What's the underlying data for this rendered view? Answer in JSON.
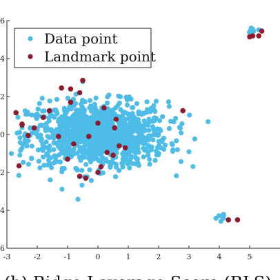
{
  "chart_data": {
    "type": "scatter",
    "xlim": [
      -3,
      6
    ],
    "ylim": [
      -6,
      6
    ],
    "x_ticks": [
      "-3",
      "-2",
      "-1",
      "0",
      "1",
      "2",
      "3",
      "4",
      "5"
    ],
    "y_ticks": [
      "6",
      "4",
      "2",
      "0",
      "2",
      "4",
      "6"
    ],
    "legend_position": "top-left",
    "colors": {
      "data": "#4dbde8",
      "landmark": "#8c1b2e"
    },
    "series": [
      {
        "name": "Data point",
        "clusters": [
          {
            "cx": 0.0,
            "cy": 0.0,
            "sx": 1.15,
            "sy": 0.85,
            "n": 1100
          },
          {
            "cx": 5.1,
            "cy": 5.5,
            "sx": 0.12,
            "sy": 0.05,
            "n": 8
          },
          {
            "cx": 4.0,
            "cy": -4.4,
            "sx": 0.12,
            "sy": 0.12,
            "n": 7
          }
        ]
      },
      {
        "name": "Landmark point",
        "x": [
          -2.7,
          -2.5,
          -2.3,
          -2.6,
          -2.1,
          -1.8,
          -1.6,
          -1.2,
          -0.9,
          -0.8,
          -0.6,
          -0.5,
          -0.4,
          0.0,
          0.3,
          0.5,
          0.6,
          0.7,
          0.9,
          -1.0,
          -0.6,
          -0.3,
          0.0,
          0.1,
          0.2,
          -0.9,
          2.8,
          -2.5,
          -1.3,
          0.55,
          5.0,
          5.1,
          5.3,
          5.4,
          4.3,
          4.6
        ],
        "y": [
          1.15,
          0.5,
          -0.05,
          -1.65,
          0.35,
          0.9,
          1.25,
          2.45,
          2.4,
          -0.5,
          2.2,
          2.85,
          -2.3,
          0.6,
          -0.95,
          -1.1,
          0.8,
          -0.6,
          -0.7,
          -1.3,
          -2.2,
          -0.1,
          -2.0,
          -1.7,
          1.4,
          1.7,
          1.25,
          0.55,
          -0.1,
          0.35,
          5.15,
          5.2,
          5.2,
          5.45,
          -4.5,
          -4.5
        ]
      }
    ]
  },
  "caption": "(b) Ridge Leverage Score (RLS)"
}
